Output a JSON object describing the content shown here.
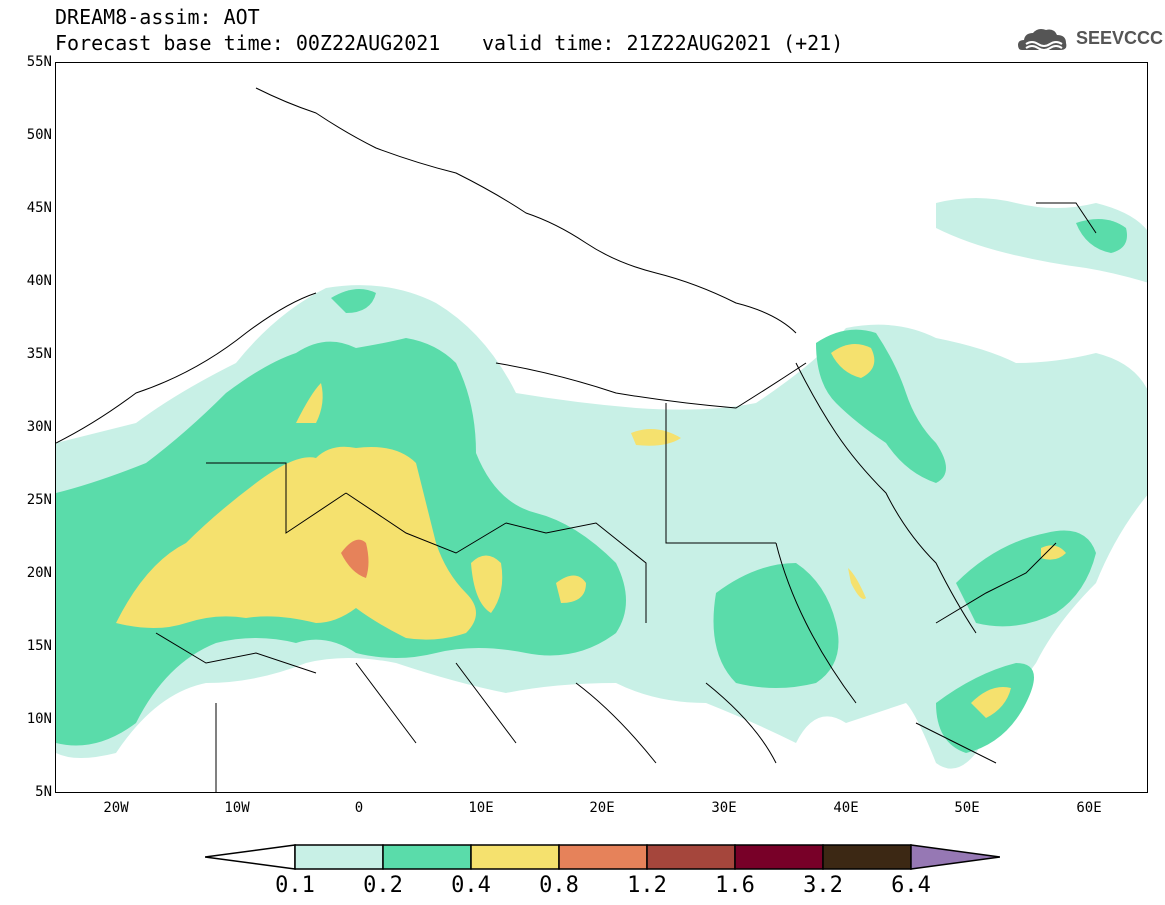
{
  "header": {
    "title": "DREAM8-assim: AOT",
    "base_time": "Forecast base time: 00Z22AUG2021",
    "valid_time": "valid time: 21Z22AUG2021 (+21)",
    "logo_text": "SEEVCCC"
  },
  "map": {
    "variable": "AOT",
    "lat_labels": [
      "55N",
      "50N",
      "45N",
      "40N",
      "35N",
      "30N",
      "25N",
      "20N",
      "15N",
      "10N",
      "5N"
    ],
    "lon_labels": [
      "20W",
      "10W",
      "0",
      "10E",
      "20E",
      "30E",
      "40E",
      "50E",
      "60E"
    ],
    "colors": {
      "level1": "#c8f0e6",
      "level2": "#5adcaa",
      "level3": "#f5e16e",
      "level4": "#e6825a",
      "level5": "#a5463c",
      "level6": "#780028",
      "level7": "#3c2814",
      "level8": "#9678b4",
      "border": "#000000"
    }
  },
  "colorbar": {
    "labels": [
      "0.1",
      "0.2",
      "0.4",
      "0.8",
      "1.2",
      "1.6",
      "3.2",
      "6.4"
    ]
  }
}
